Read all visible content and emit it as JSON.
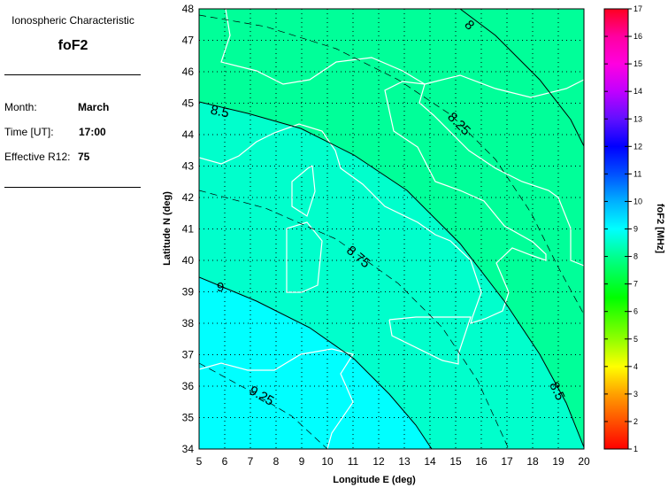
{
  "panel": {
    "title": "Ionospheric Characteristic",
    "characteristic": "foF2",
    "month_label": "Month:",
    "month": "March",
    "time_label": "Time [UT]:",
    "time": "17:00",
    "r12_label": "Effective R12:",
    "r12": "75"
  },
  "chart_data": {
    "type": "contour-map",
    "xlabel": "Longitude E (deg)",
    "ylabel": "Latitude N (deg)",
    "xlim": [
      5,
      20
    ],
    "ylim": [
      34,
      48
    ],
    "xticks": [
      "5",
      "6",
      "7",
      "8",
      "9",
      "10",
      "11",
      "12",
      "13",
      "14",
      "15",
      "16",
      "17",
      "18",
      "19",
      "20"
    ],
    "yticks": [
      "34",
      "35",
      "36",
      "37",
      "38",
      "39",
      "40",
      "41",
      "42",
      "43",
      "44",
      "45",
      "46",
      "47",
      "48"
    ],
    "grid": true,
    "contour_labels": [
      "8",
      "8.25",
      "8.5",
      "8.75",
      "9",
      "9.25"
    ],
    "colorbar": {
      "label": "foF2 [MHz]",
      "range": [
        1,
        17
      ],
      "ticks": [
        "1",
        "2",
        "3",
        "4",
        "5",
        "6",
        "7",
        "8",
        "9",
        "10",
        "11",
        "12",
        "13",
        "14",
        "15",
        "16",
        "17"
      ],
      "stops": [
        [
          1,
          "#ff0000"
        ],
        [
          2,
          "#ff5000"
        ],
        [
          3,
          "#ffa000"
        ],
        [
          4,
          "#ffff00"
        ],
        [
          5,
          "#90ff00"
        ],
        [
          6,
          "#30ff00"
        ],
        [
          6.5,
          "#00ff00"
        ],
        [
          8,
          "#00ff90"
        ],
        [
          9,
          "#00ffff"
        ],
        [
          10,
          "#00b0ff"
        ],
        [
          11,
          "#0050ff"
        ],
        [
          12,
          "#0000ff"
        ],
        [
          13,
          "#6010ff"
        ],
        [
          14,
          "#c000ff"
        ],
        [
          15,
          "#ff00e0"
        ],
        [
          16,
          "#ff00a0"
        ],
        [
          17,
          "#ff0020"
        ]
      ]
    },
    "region_colors": {
      "below_8_5": "#00ff99",
      "8_5_to_9": "#00ffcc",
      "above_9": "#00ffff"
    }
  }
}
